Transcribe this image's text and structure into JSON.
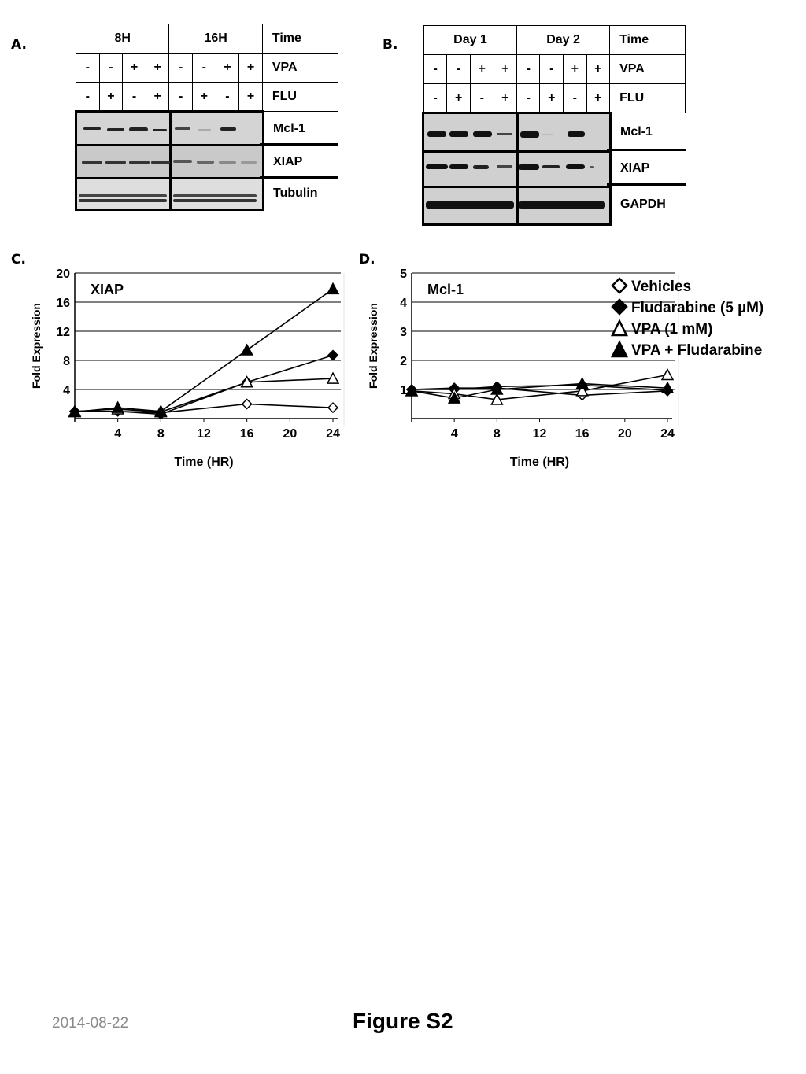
{
  "figure_title": "Figure S2",
  "date": "2014-08-22",
  "panels": {
    "a": {
      "label": "A.",
      "time_groups": [
        "8H",
        "16H"
      ],
      "row_headers": [
        "Time",
        "VPA",
        "FLU"
      ],
      "vpa": [
        "-",
        "-",
        "+",
        "+",
        "-",
        "-",
        "+",
        "+"
      ],
      "flu": [
        "-",
        "+",
        "-",
        "+",
        "-",
        "+",
        "-",
        "+"
      ],
      "blots": [
        "Mcl-1",
        "XIAP",
        "Tubulin"
      ]
    },
    "b": {
      "label": "B.",
      "time_groups": [
        "Day 1",
        "Day 2"
      ],
      "row_headers": [
        "Time",
        "VPA",
        "FLU"
      ],
      "vpa": [
        "-",
        "-",
        "+",
        "+",
        "-",
        "-",
        "+",
        "+"
      ],
      "flu": [
        "-",
        "+",
        "-",
        "+",
        "-",
        "+",
        "-",
        "+"
      ],
      "blots": [
        "Mcl-1",
        "XIAP",
        "GAPDH"
      ]
    },
    "c": {
      "label": "C."
    },
    "d": {
      "label": "D."
    }
  },
  "chart_data": [
    {
      "type": "line",
      "panel": "C",
      "title": "XIAP",
      "xlabel": "Time (HR)",
      "ylabel": "Fold Expression",
      "x": [
        0,
        4,
        8,
        16,
        24
      ],
      "xticks": [
        4,
        8,
        12,
        16,
        20,
        24
      ],
      "yticks": [
        4,
        8,
        12,
        16,
        20
      ],
      "ylim": [
        0,
        20
      ],
      "xlim": [
        0,
        24
      ],
      "grid": "horizontal",
      "series": [
        {
          "name": "Vehicles",
          "marker": "open-diamond",
          "values": [
            1,
            1,
            0.8,
            2,
            1.5
          ]
        },
        {
          "name": "Fludarabine (5 µM)",
          "marker": "filled-diamond",
          "values": [
            1,
            1,
            0.6,
            5,
            8.7
          ]
        },
        {
          "name": "VPA (1 mM)",
          "marker": "open-triangle",
          "values": [
            1,
            1.3,
            0.9,
            5,
            5.5
          ]
        },
        {
          "name": "VPA + Fludarabine",
          "marker": "filled-triangle",
          "values": [
            0.9,
            1.5,
            1,
            9.4,
            17.8
          ]
        }
      ]
    },
    {
      "type": "line",
      "panel": "D",
      "title": "Mcl-1",
      "xlabel": "Time (HR)",
      "ylabel": "Fold Expression",
      "x": [
        0,
        4,
        8,
        16,
        24
      ],
      "xticks": [
        4,
        8,
        12,
        16,
        20,
        24
      ],
      "yticks": [
        1,
        2,
        3,
        4,
        5
      ],
      "ylim": [
        0,
        5
      ],
      "xlim": [
        0,
        24
      ],
      "grid": "horizontal",
      "legend": [
        "Vehicles",
        "Fludarabine (5 µM)",
        "VPA (1 mM)",
        "VPA + Fludarabine"
      ],
      "legend_position": "upper right",
      "series": [
        {
          "name": "Vehicles",
          "marker": "open-diamond",
          "values": [
            1,
            1.05,
            1.05,
            0.8,
            0.95
          ]
        },
        {
          "name": "Fludarabine (5 µM)",
          "marker": "filled-diamond",
          "values": [
            1,
            1,
            1.1,
            1.15,
            0.97
          ]
        },
        {
          "name": "VPA (1 mM)",
          "marker": "open-triangle",
          "values": [
            0.95,
            0.85,
            0.65,
            0.95,
            1.5
          ]
        },
        {
          "name": "VPA + Fludarabine",
          "marker": "filled-triangle",
          "values": [
            0.95,
            0.7,
            1,
            1.2,
            1.05
          ]
        }
      ]
    }
  ]
}
